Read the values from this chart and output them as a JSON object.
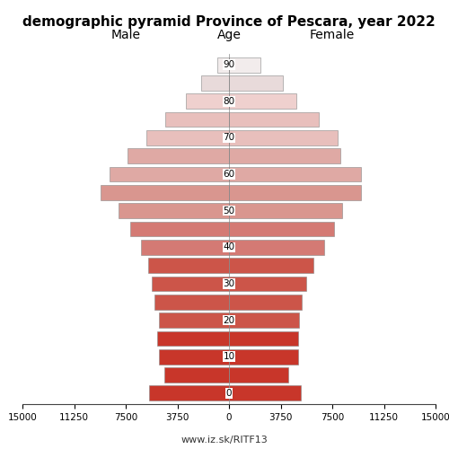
{
  "title": "demographic pyramid Province of Pescara, year 2022",
  "male_label": "Male",
  "female_label": "Female",
  "age_label": "Age",
  "footer": "www.iz.sk/RITF13",
  "age_groups": [
    0,
    5,
    10,
    15,
    20,
    25,
    30,
    35,
    40,
    45,
    50,
    55,
    60,
    65,
    70,
    75,
    80,
    85,
    90
  ],
  "age_tick_labels": [
    "0",
    "",
    "10",
    "",
    "20",
    "",
    "30",
    "",
    "40",
    "",
    "50",
    "",
    "60",
    "",
    "70",
    "",
    "80",
    "",
    "90"
  ],
  "male": [
    5800,
    4700,
    5100,
    5200,
    5100,
    5400,
    5600,
    5900,
    6400,
    7200,
    8000,
    9300,
    8700,
    7400,
    6000,
    4600,
    3100,
    2000,
    850
  ],
  "female": [
    5200,
    4300,
    5000,
    5000,
    5100,
    5300,
    5600,
    6100,
    6900,
    7600,
    8200,
    9600,
    9600,
    8100,
    7900,
    6500,
    4900,
    3900,
    2300
  ],
  "bar_colors": [
    "#c8362a",
    "#c8362a",
    "#c8362a",
    "#c8362a",
    "#cc5549",
    "#cc5549",
    "#cc5549",
    "#cc5549",
    "#d47a74",
    "#d47a74",
    "#d9968f",
    "#d9968f",
    "#dfa9a4",
    "#dfa9a4",
    "#e8bfbc",
    "#e8bfbc",
    "#efd0ce",
    "#e8dada",
    "#f2ecec"
  ],
  "xlim": 15000,
  "xticks": [
    15000,
    11250,
    7500,
    3750,
    0,
    3750,
    7500,
    11250,
    15000
  ],
  "xtick_labels": [
    "15000",
    "11250",
    "7500",
    "3750",
    "0",
    "3750",
    "7500",
    "11250",
    "15000"
  ],
  "background_color": "#ffffff"
}
